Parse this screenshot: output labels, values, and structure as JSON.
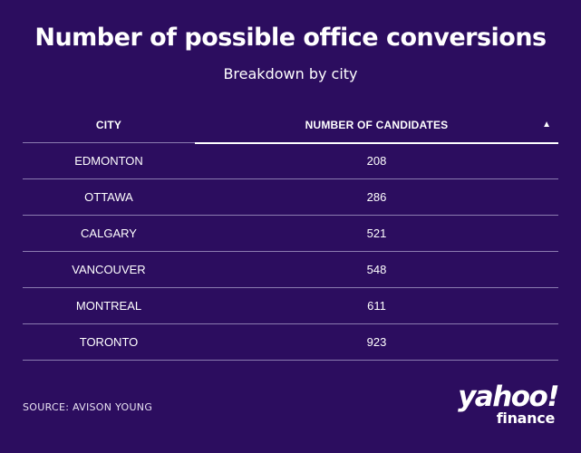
{
  "title": "Number of possible office conversions",
  "subtitle": "Breakdown by city",
  "table": {
    "columns": [
      "CITY",
      "NUMBER OF CANDIDATES"
    ],
    "sort_icon": "sort-ascending-triangle-icon",
    "sort_glyph": "▲",
    "rows": [
      {
        "city": "EDMONTON",
        "count": "208"
      },
      {
        "city": "OTTAWA",
        "count": "286"
      },
      {
        "city": "CALGARY",
        "count": "521"
      },
      {
        "city": "VANCOUVER",
        "count": "548"
      },
      {
        "city": "MONTREAL",
        "count": "611"
      },
      {
        "city": "TORONTO",
        "count": "923"
      }
    ]
  },
  "source": "SOURCE: AVISON YOUNG",
  "logo": {
    "brand": "yahoo!",
    "product": "finance"
  },
  "colors": {
    "background": "#2c0d5f",
    "text": "#ffffff",
    "divider": "#8b7bb0"
  },
  "chart_data": {
    "type": "table",
    "title": "Number of possible office conversions",
    "subtitle": "Breakdown by city",
    "columns": [
      "CITY",
      "NUMBER OF CANDIDATES"
    ],
    "categories": [
      "EDMONTON",
      "OTTAWA",
      "CALGARY",
      "VANCOUVER",
      "MONTREAL",
      "TORONTO"
    ],
    "values": [
      208,
      286,
      521,
      548,
      611,
      923
    ],
    "sorted_by": "NUMBER OF CANDIDATES",
    "sort_order": "ascending"
  }
}
